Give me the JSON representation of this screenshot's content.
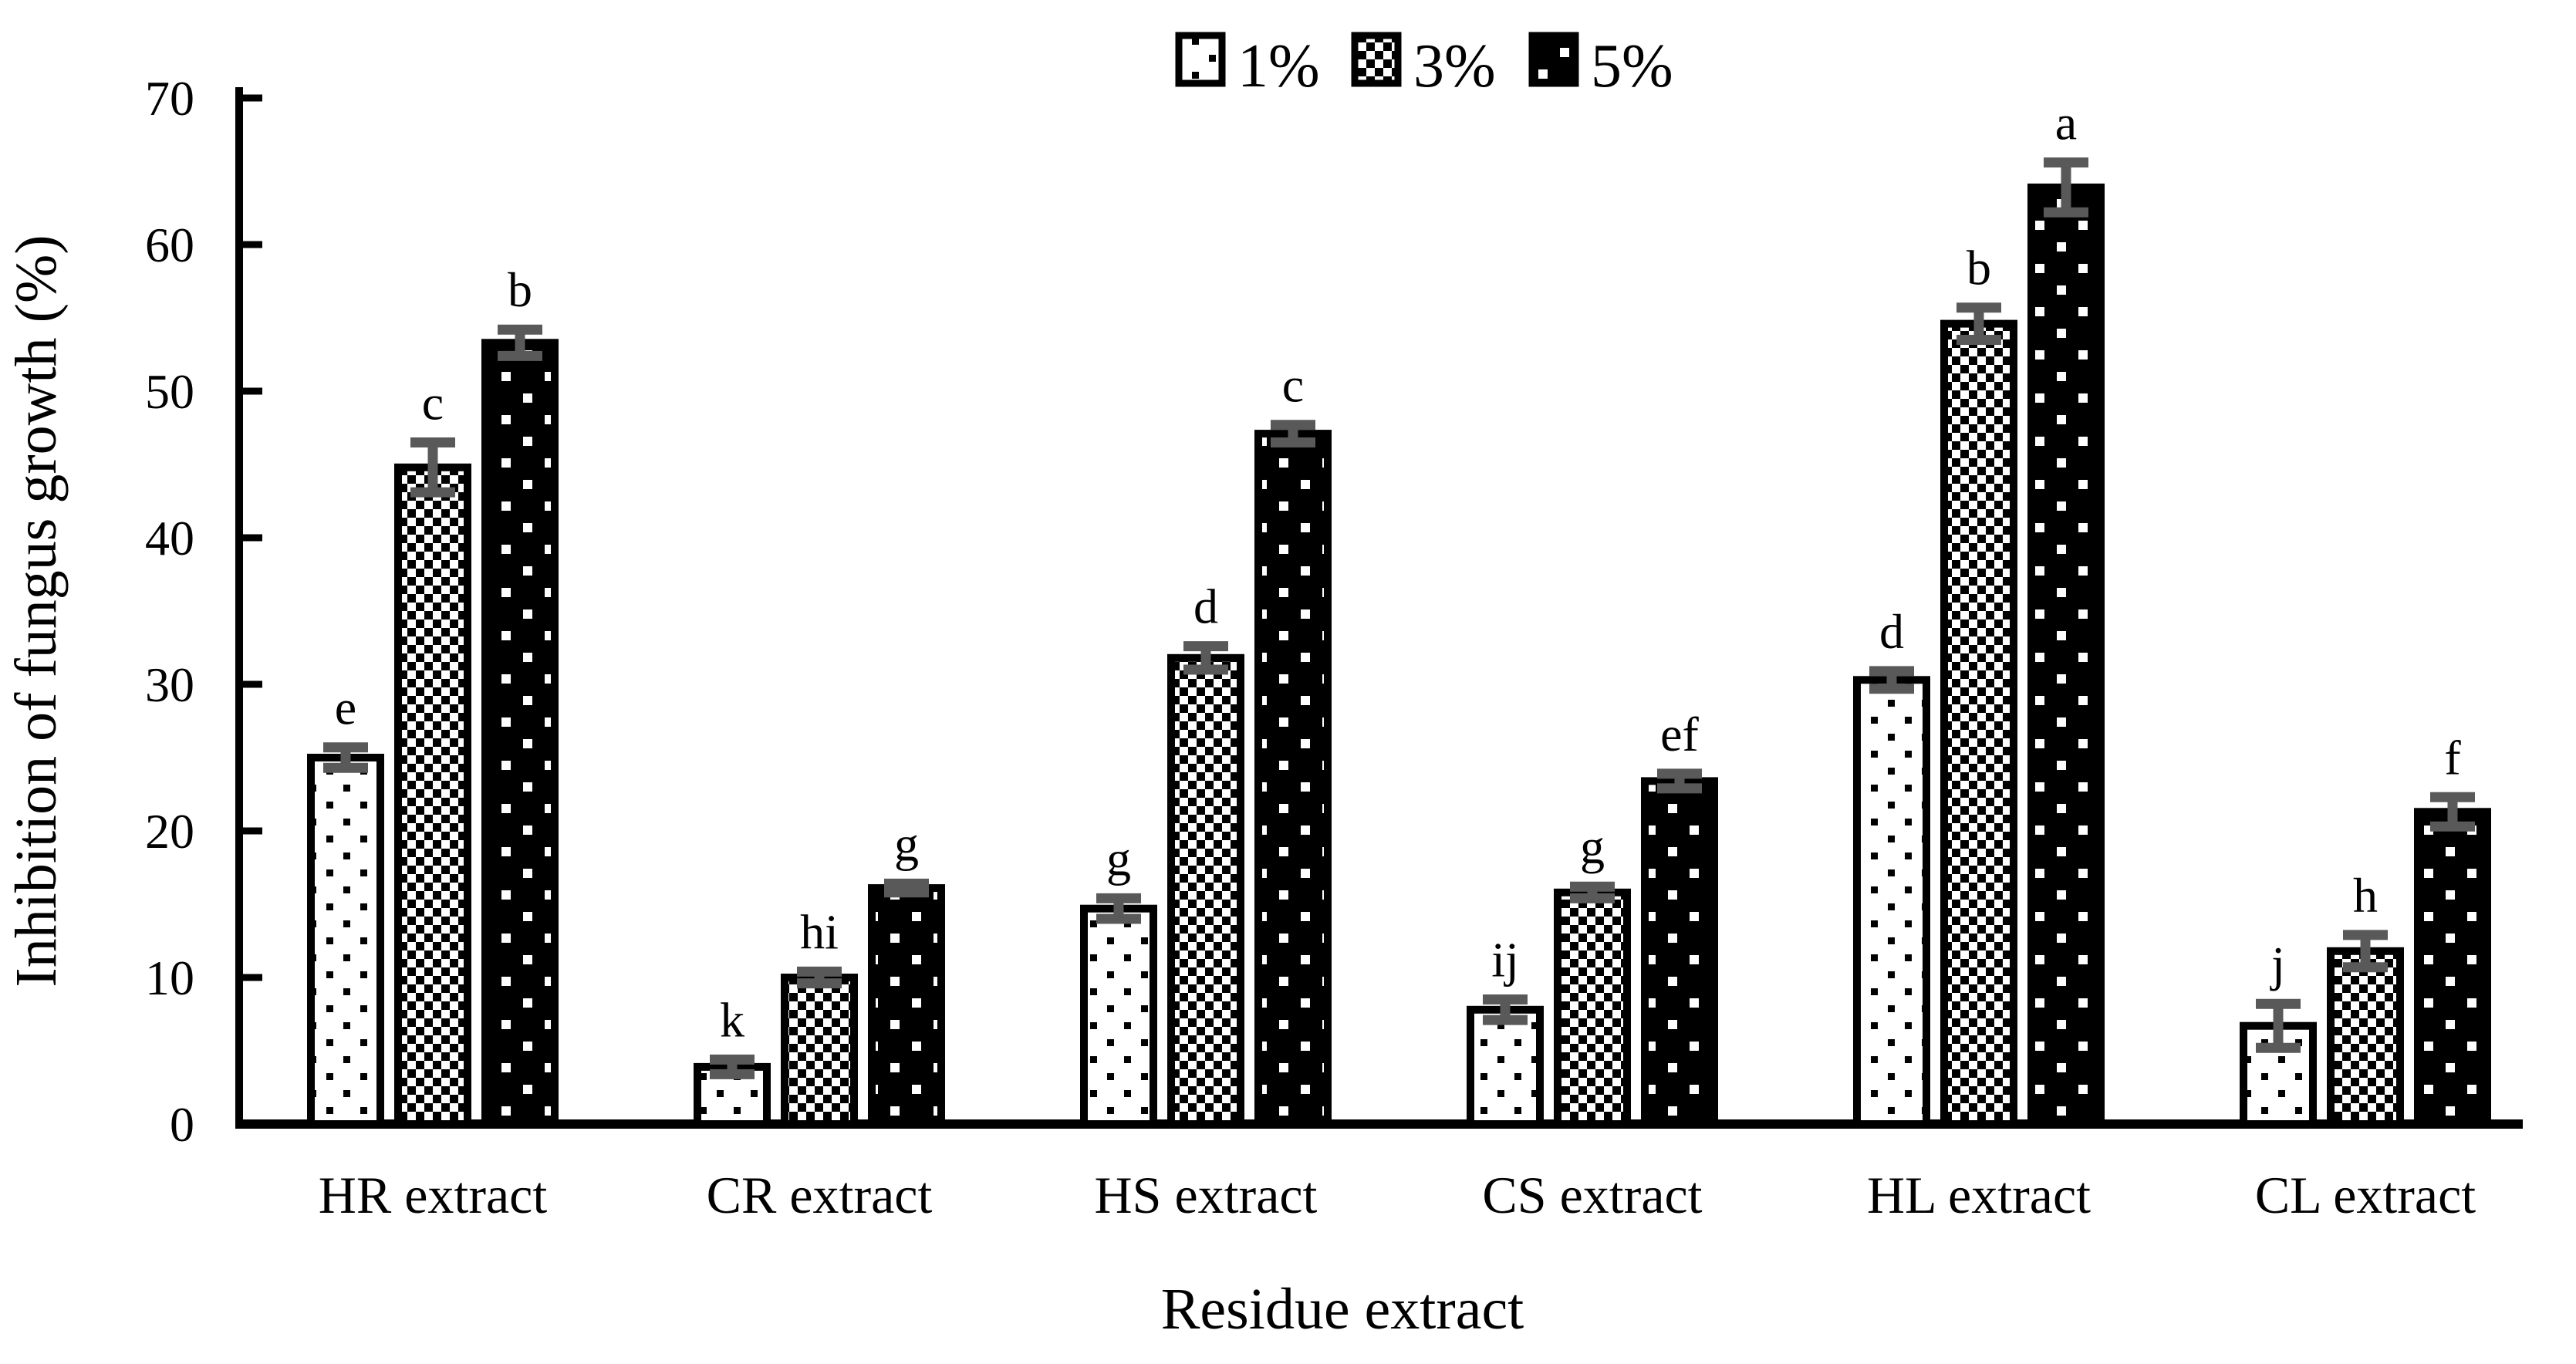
{
  "chart_data": {
    "type": "bar",
    "title": "",
    "xlabel": "Residue extract",
    "ylabel": "Inhibition of fungus growth (%)",
    "ylim": [
      0,
      70
    ],
    "yticks": [
      0,
      10,
      20,
      30,
      40,
      50,
      60,
      70
    ],
    "grid": false,
    "legend_position": "top-center",
    "bar_outline_color": "#000000",
    "error_bar_color": "#595959",
    "background_color": "#ffffff",
    "categories": [
      "HR extract",
      "CR extract",
      "HS extract",
      "CS extract",
      "HL extract",
      "CL extract"
    ],
    "series": [
      {
        "name": "1%",
        "pattern": "black-dots-on-white",
        "values": [
          25.0,
          3.9,
          14.7,
          7.8,
          30.3,
          6.7
        ],
        "errors": [
          0.7,
          0.5,
          0.7,
          0.7,
          0.6,
          1.5
        ],
        "letters": [
          "e",
          "k",
          "g",
          "ij",
          "d",
          "j"
        ]
      },
      {
        "name": "3%",
        "pattern": "checkerboard",
        "values": [
          44.8,
          10.0,
          31.8,
          15.8,
          54.6,
          11.8
        ],
        "errors": [
          1.7,
          0.4,
          0.8,
          0.4,
          1.1,
          1.1
        ],
        "letters": [
          "c",
          "hi",
          "d",
          "g",
          "b",
          "h"
        ]
      },
      {
        "name": "5%",
        "pattern": "white-dots-on-black",
        "values": [
          53.3,
          16.1,
          47.1,
          23.4,
          63.9,
          21.3
        ],
        "errors": [
          0.9,
          0.3,
          0.6,
          0.5,
          1.7,
          1.0
        ],
        "letters": [
          "b",
          "g",
          "c",
          "ef",
          "a",
          "f"
        ]
      }
    ]
  }
}
